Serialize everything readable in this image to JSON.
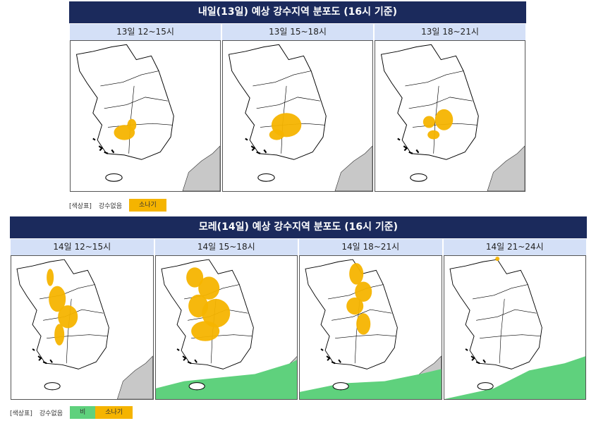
{
  "sections": [
    {
      "title": "내일(13일) 예상 강수지역 분포도 (16시 기준)",
      "columns": [
        "13일 12~15시",
        "13일 15~18시",
        "13일 18~21시"
      ],
      "legend": {
        "label": "[색상표]",
        "items": [
          "강수없음",
          "소나기"
        ]
      }
    },
    {
      "title": "모레(14일) 예상 강수지역 분포도 (16시 기준)",
      "columns": [
        "14일 12~15시",
        "14일 15~18시",
        "14일 18~21시",
        "14일 21~24시"
      ],
      "legend": {
        "label": "[색상표]",
        "items": [
          "강수없음",
          "비",
          "소나기"
        ]
      }
    }
  ]
}
